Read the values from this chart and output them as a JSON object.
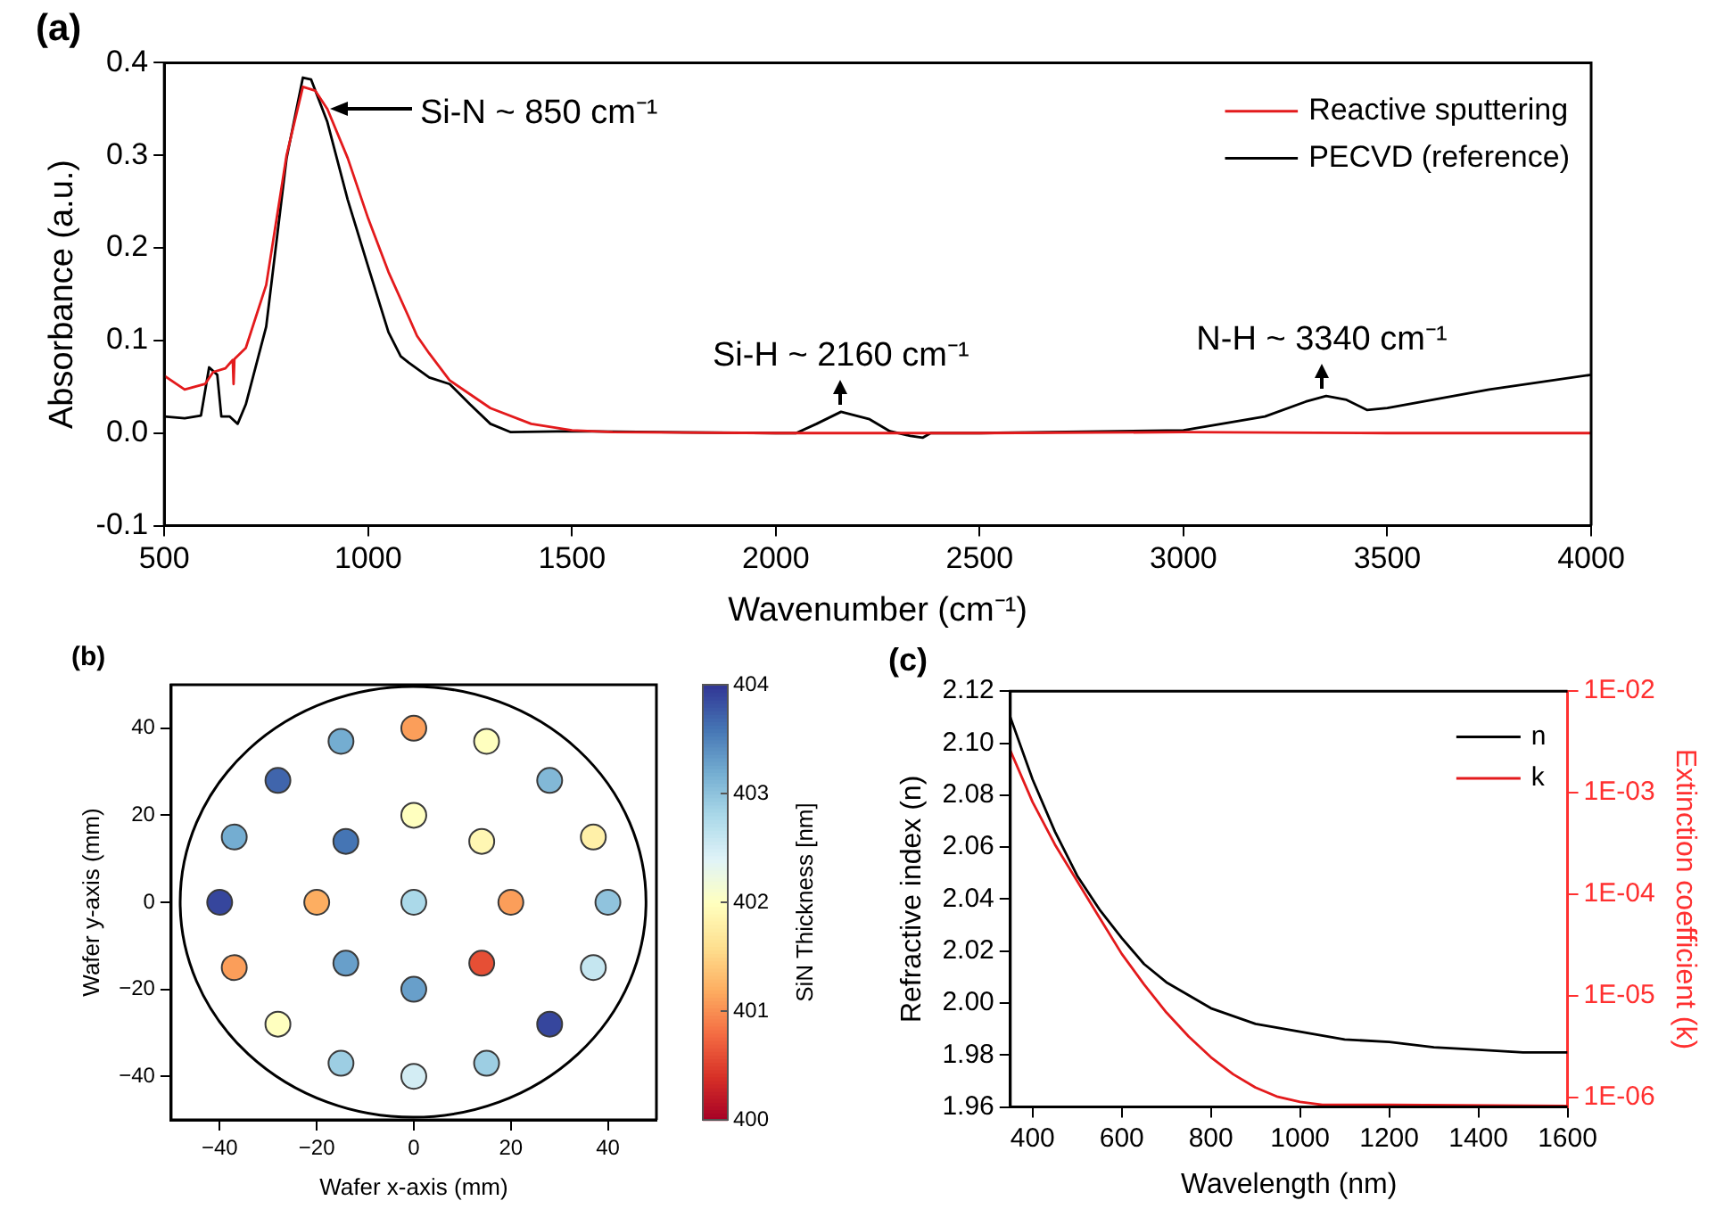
{
  "chart_data": [
    {
      "type": "line",
      "title": "(a)",
      "xlabel": "Wavenumber (cm⁻¹)",
      "ylabel": "Absorbance (a.u.)",
      "xlim": [
        500,
        4000
      ],
      "xticks": [
        500,
        1000,
        1500,
        2000,
        2500,
        3000,
        3500,
        4000
      ],
      "ylim": [
        -0.1,
        0.4
      ],
      "yticks": [
        -0.1,
        {
          "value": 0,
          "label": "0.0"
        },
        0.1,
        0.2,
        0.3,
        0.4
      ],
      "legend": "top right",
      "annotations": [
        {
          "text": "Si-N ~ 850 cm⁻¹",
          "x": 900,
          "y": 0.35
        },
        {
          "text": "Si-H ~ 2160 cm⁻¹",
          "x": 2160,
          "y": 0.023
        },
        {
          "text": "N-H ~ 3340 cm⁻¹",
          "x": 3340,
          "y": 0.04
        }
      ],
      "series": [
        {
          "name": "Reactive sputtering",
          "color": "#e31a1c",
          "x": [
            500,
            550,
            600,
            620,
            650,
            668,
            670,
            672,
            700,
            750,
            800,
            840,
            870,
            900,
            950,
            1000,
            1050,
            1100,
            1120,
            1150,
            1200,
            1300,
            1400,
            1500,
            1600,
            2000,
            2500,
            3000,
            3500,
            4000
          ],
          "values": [
            0.062,
            0.047,
            0.053,
            0.066,
            0.07,
            0.079,
            0.053,
            0.08,
            0.092,
            0.16,
            0.3,
            0.374,
            0.37,
            0.35,
            0.297,
            0.232,
            0.174,
            0.125,
            0.105,
            0.086,
            0.057,
            0.027,
            0.01,
            0.003,
            0.001,
            0,
            0,
            0.001,
            0,
            0
          ]
        },
        {
          "name": "PECVD (reference)",
          "color": "#000000",
          "x": [
            500,
            550,
            590,
            610,
            630,
            640,
            660,
            680,
            700,
            750,
            800,
            840,
            860,
            900,
            950,
            1000,
            1050,
            1080,
            1100,
            1150,
            1200,
            1250,
            1300,
            1350,
            1500,
            2000,
            2050,
            2100,
            2160,
            2230,
            2280,
            2330,
            2360,
            2380,
            2500,
            3000,
            3200,
            3300,
            3350,
            3400,
            3450,
            3500,
            3750,
            4000
          ],
          "values": [
            0.018,
            0.016,
            0.019,
            0.071,
            0.063,
            0.018,
            0.018,
            0.01,
            0.031,
            0.115,
            0.297,
            0.384,
            0.382,
            0.336,
            0.252,
            0.18,
            0.109,
            0.083,
            0.076,
            0.06,
            0.053,
            0.031,
            0.01,
            0.001,
            0.002,
            0,
            0,
            0.01,
            0.023,
            0.015,
            0.002,
            -0.003,
            -0.005,
            0,
            0,
            0.003,
            0.018,
            0.034,
            0.04,
            0.036,
            0.025,
            0.027,
            0.047,
            0.063
          ]
        }
      ]
    },
    {
      "type": "scatter",
      "title": "(b)",
      "xlabel": "Wafer x-axis (mm)",
      "ylabel": "Wafer y-axis (mm)",
      "clabel": "SiN Thickness [nm]",
      "marker": "circle",
      "xlim": [
        -50,
        50
      ],
      "xticks": [
        {
          "value": -40,
          "label": "−40"
        },
        {
          "value": -20,
          "label": "−20"
        },
        0,
        20,
        40
      ],
      "ylim": [
        -50,
        50
      ],
      "yticks": [
        {
          "value": -40,
          "label": "−40"
        },
        {
          "value": -20,
          "label": "−20"
        },
        0,
        20,
        40
      ],
      "clim": [
        400,
        404
      ],
      "cticks": [
        400,
        401,
        402,
        403,
        404
      ],
      "series": [
        {
          "x": [
            0,
            -15,
            15,
            -28,
            28,
            0,
            -37,
            -14,
            14,
            37,
            -40,
            -20,
            0,
            20,
            40,
            -37,
            -14,
            14,
            37,
            0,
            -28,
            28,
            -15,
            15,
            0
          ],
          "values": [
            40,
            37,
            37,
            28,
            28,
            20,
            15,
            14,
            14,
            15,
            0,
            0,
            0,
            0,
            0,
            -15,
            -14,
            -14,
            -15,
            -20,
            -28,
            -28,
            -37,
            -37,
            -40
          ],
          "cvalues": [
            401.1,
            403.2,
            402.0,
            403.7,
            403.1,
            402.0,
            403.2,
            403.6,
            401.9,
            401.8,
            403.9,
            401.2,
            402.8,
            401.1,
            403.0,
            401.1,
            403.3,
            400.6,
            402.6,
            403.3,
            402.0,
            403.9,
            402.9,
            402.9,
            402.5
          ]
        }
      ]
    },
    {
      "type": "line",
      "title": "(c)",
      "xlabel": "Wavelength (nm)",
      "ylabel": "Refractive index (n)",
      "y2label": "Extinction coefficient (k)",
      "log": "y2",
      "legend": "top right",
      "xlim": [
        350,
        1600
      ],
      "xticks": [
        400,
        600,
        800,
        1000,
        1200,
        1400,
        1600
      ],
      "ylim": [
        1.96,
        2.12
      ],
      "yticks": [
        1.96,
        1.98,
        {
          "value": 2,
          "label": "2.00"
        },
        2.02,
        2.04,
        2.06,
        2.08,
        {
          "value": 2.1,
          "label": "2.10"
        },
        2.12
      ],
      "y2lim": [
        8.1e-07,
        0.01
      ],
      "y2ticks": [
        {
          "value": 1e-06,
          "label": "1E-06"
        },
        {
          "value": 1e-05,
          "label": "1E-05"
        },
        {
          "value": 0.0001,
          "label": "1E-04"
        },
        {
          "value": 0.001,
          "label": "1E-03"
        },
        {
          "value": 0.01,
          "label": "1E-02"
        }
      ],
      "series": [
        {
          "name": "n",
          "color": "#000000",
          "x": [
            350,
            400,
            450,
            500,
            550,
            600,
            650,
            700,
            800,
            900,
            1000,
            1100,
            1200,
            1300,
            1400,
            1500,
            1600
          ],
          "values": [
            2.11,
            2.086,
            2.066,
            2.049,
            2.036,
            2.025,
            2.015,
            2.008,
            1.998,
            1.992,
            1.989,
            1.986,
            1.985,
            1.983,
            1.982,
            1.981,
            1.981
          ]
        },
        {
          "name": "k",
          "color": "#e31a1c",
          "axis": "y2",
          "x": [
            350,
            400,
            450,
            500,
            550,
            600,
            650,
            700,
            750,
            800,
            850,
            900,
            950,
            1000,
            1050,
            1200,
            1600
          ],
          "values": [
            0.0026,
            0.00081,
            0.00031,
            0.000135,
            5.9e-05,
            2.6e-05,
            1.3e-05,
            6.9e-06,
            4e-06,
            2.5e-06,
            1.7e-06,
            1.26e-06,
            1.02e-06,
            9.1e-07,
            8.5e-07,
            8.5e-07,
            8.3e-07
          ]
        }
      ]
    }
  ]
}
